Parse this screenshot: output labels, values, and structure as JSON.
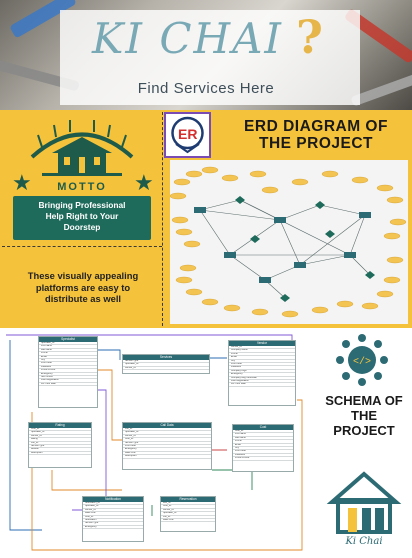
{
  "hero": {
    "title": "KI CHAI",
    "qmark": "?",
    "subtitle": "Find Services Here"
  },
  "motto": {
    "label": "MOTTO",
    "lines": [
      "Bringing Professional",
      "Help Right to Your",
      "Doorstep"
    ]
  },
  "visual_note": {
    "lines": [
      "These visually appealing",
      "platforms are easy to",
      "distribute as well"
    ]
  },
  "erd": {
    "badge": "ER",
    "title_line1": "ERD DIAGRAM OF",
    "title_line2": "THE PROJECT"
  },
  "schema": {
    "title_line1": "SCHEMA OF",
    "title_line2": "THE",
    "title_line3": "PROJECT",
    "icon": "gear-network-icon",
    "tables": [
      {
        "name": "Specialist",
        "rows": [
          "Specialist_ID",
          "First name",
          "Last name",
          "Phone",
          "Email",
          "City",
          "Post Code",
          "Password",
          "Profile Picture",
          "Emergency",
          "NID Picture",
          "Joint Registration",
          "Per Hour Rate"
        ]
      },
      {
        "name": "Services",
        "rows": [
          "Service Type",
          "Specialist_ID",
          "Vendor_ID"
        ]
      },
      {
        "name": "Vendor",
        "rows": [
          "Vendor_ID",
          "Company Name",
          "Phone",
          "Email",
          "City",
          "Post Code",
          "Password",
          "Company Logo",
          "Emergency",
          "Company Reg Certificate",
          "Joint Registration",
          "Per Hour Rate"
        ]
      },
      {
        "name": "Rating",
        "rows": [
          "Cust_ID",
          "Specialist_ID",
          "Vendor_ID",
          "Rating",
          "Job_ID",
          "Service Type",
          "Review",
          "Description"
        ]
      },
      {
        "name": "Call Data",
        "rows": [
          "Job_ID",
          "Specialist_ID",
          "Vendor_ID",
          "Cust_ID",
          "Service Type",
          "Post Code",
          "Emergency",
          "Date/Time",
          "Description"
        ]
      },
      {
        "name": "Cust",
        "rows": [
          "Cust_ID",
          "First name",
          "Last name",
          "Phone",
          "Email",
          "City",
          "Post Code",
          "Password",
          "Profile Picture"
        ]
      },
      {
        "name": "Notification",
        "rows": [
          "Notification_ID",
          "Specialist_ID",
          "Vendor_ID",
          "Date/Time",
          "Cust_ID",
          "Notification",
          "Service Type",
          "Emergency"
        ]
      },
      {
        "name": "Reservation",
        "rows": [
          "Rsv_ID",
          "Cust_ID",
          "Vendor_ID",
          "Specialist_ID",
          "Job_ID",
          "Date/Time"
        ]
      }
    ]
  },
  "brand": {
    "name": "Ki Chai"
  },
  "colors": {
    "yellow": "#f5c33b",
    "teal": "#1f6b5b",
    "header_teal": "#2d6b74",
    "accent_purple": "#7a4bb3"
  }
}
